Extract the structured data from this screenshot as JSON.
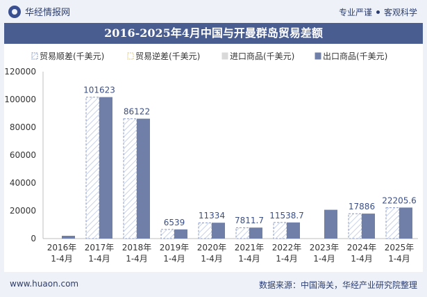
{
  "header": {
    "brand": "华经情报网",
    "slogan_left": "专业严谨",
    "slogan_right": "客观科学"
  },
  "colors": {
    "export_bar": "#6f7fa8",
    "surplus_fill": "#ffffff",
    "surplus_stroke": "#8a9ac6",
    "import_bar": "#d9d9d9",
    "axis_text": "#333333",
    "label_text": "#3b4f86",
    "title_bg": "#4a5d91"
  },
  "footer": {
    "site": "www.huaon.com",
    "source": "数据来源：中国海关，华经产业研究院整理"
  },
  "chart_data": {
    "type": "bar",
    "title": "2016-2025年4月中国与开曼群岛贸易差额",
    "legend": [
      "贸易顺差(千美元)",
      "贸易逆差(千美元)",
      "进口商品(千美元)",
      "出口商品(千美元)"
    ],
    "legend_position": "top",
    "categories": [
      "2016年\n1-4月",
      "2017年\n1-4月",
      "2018年\n1-4月",
      "2019年\n1-4月",
      "2020年\n1-4月",
      "2021年\n1-4月",
      "2022年\n1-4月",
      "2023年\n1-4月",
      "2024年\n1-4月",
      "2025年\n1-4月"
    ],
    "series": [
      {
        "name": "贸易顺差(千美元)",
        "values": [
          null,
          101623,
          86122,
          6539,
          11334,
          7811.7,
          11538.7,
          null,
          17886,
          22205.6
        ]
      },
      {
        "name": "出口商品(千美元)",
        "values": [
          2000,
          101700,
          86200,
          6600,
          11400,
          7900,
          11600,
          20700,
          17950,
          22300
        ]
      }
    ],
    "data_labels": [
      "",
      "101623",
      "86122",
      "6539",
      "11334",
      "7811.7",
      "11538.7",
      "",
      "17886",
      "22205.6"
    ],
    "y_ticks": [
      "0",
      "20000",
      "40000",
      "60000",
      "80000",
      "100000",
      "120000"
    ],
    "ylim": [
      0,
      120000
    ],
    "grid": false
  }
}
